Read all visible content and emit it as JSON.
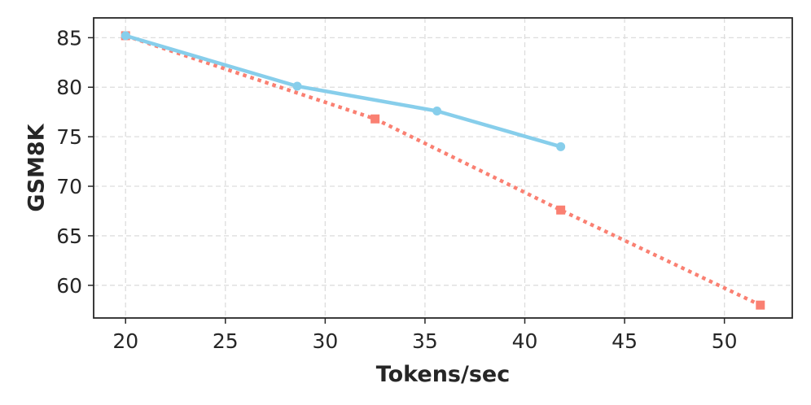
{
  "chart_data": {
    "type": "line",
    "title": "",
    "xlabel": "Tokens/sec",
    "ylabel": "GSM8K",
    "xlim": [
      18.4,
      53.4
    ],
    "ylim": [
      56.7,
      87.0
    ],
    "xticks": [
      20,
      25,
      30,
      35,
      40,
      45,
      50
    ],
    "yticks": [
      60,
      65,
      70,
      75,
      80,
      85
    ],
    "grid": true,
    "legend": "none",
    "series": [
      {
        "color": "#87CEEB",
        "line_style": "solid",
        "marker": "circle",
        "x": [
          20.0,
          28.6,
          35.6,
          41.8
        ],
        "y": [
          85.2,
          80.1,
          77.6,
          74.0
        ]
      },
      {
        "color": "#FA8072",
        "line_style": "dotted",
        "marker": "square",
        "x": [
          20.0,
          32.5,
          41.8,
          51.8
        ],
        "y": [
          85.2,
          76.8,
          67.6,
          58.0
        ]
      }
    ]
  }
}
